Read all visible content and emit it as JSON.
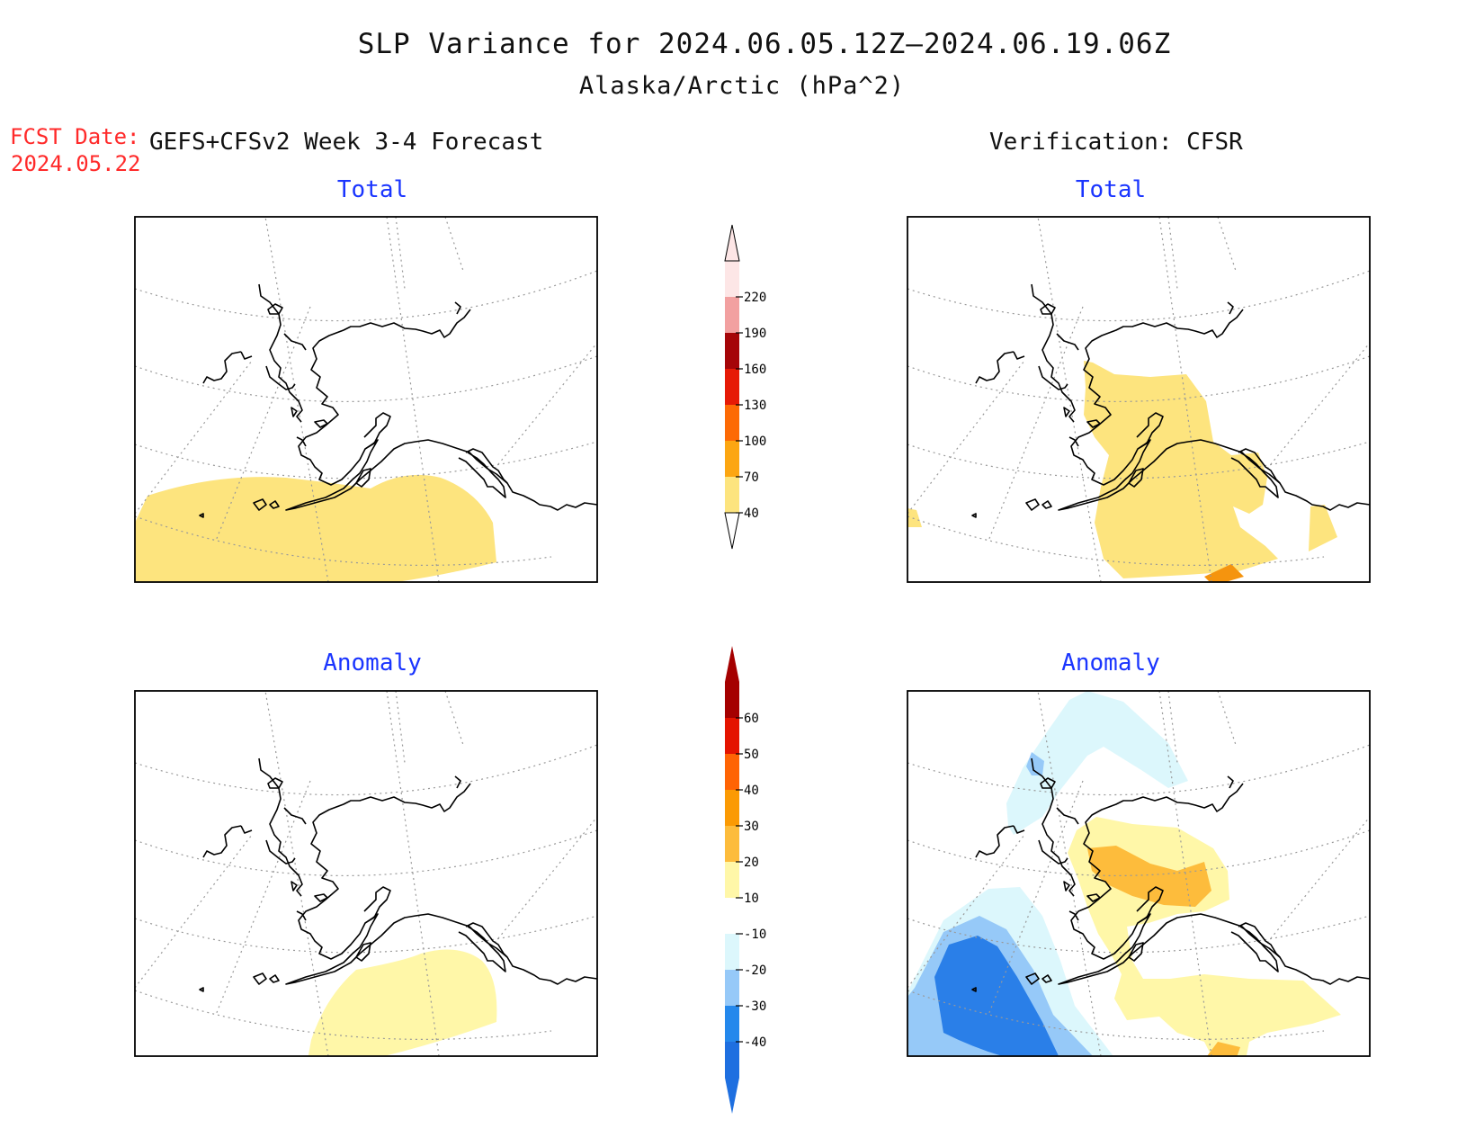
{
  "header": {
    "title": "SLP Variance for 2024.06.05.12Z–2024.06.19.06Z",
    "subtitle": "Alaska/Arctic (hPa^2)",
    "fcst_label": "FCST Date:",
    "fcst_value": "2024.05.22",
    "left_column": "GEFS+CFSv2 Week 3-4 Forecast",
    "right_column": "Verification: CFSR"
  },
  "panels": {
    "fcst_total": "Total",
    "obs_total": "Total",
    "fcst_anomaly": "Anomaly",
    "obs_anomaly": "Anomaly"
  },
  "colorbars": {
    "total": {
      "labels": [
        "40",
        "70",
        "100",
        "130",
        "160",
        "190",
        "220"
      ],
      "colors": [
        "#fde47e",
        "#fca612",
        "#fd6a05",
        "#e61a06",
        "#a50508",
        "#f2a0a0",
        "#fde6e6"
      ]
    },
    "anomaly": {
      "labels": [
        "-40",
        "-30",
        "-20",
        "-10",
        "10",
        "20",
        "30",
        "40",
        "50",
        "60"
      ],
      "colors": [
        "#1e6fe0",
        "#2488ec",
        "#96c9f8",
        "#dcf7fc",
        "#ffffff",
        "#fff7a8",
        "#fdbc3c",
        "#fb9a04",
        "#ff6404",
        "#e41400",
        "#a50000"
      ]
    }
  },
  "colors": {
    "land_outline": "#000000",
    "title_blue": "#1a35ff",
    "fcst_red": "#ff2a2a"
  }
}
